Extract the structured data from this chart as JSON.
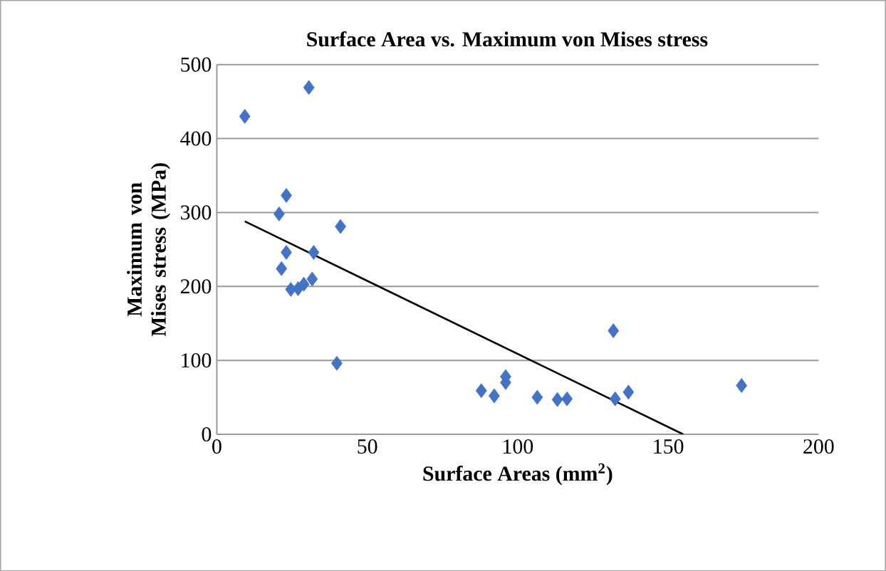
{
  "chart_data": {
    "type": "scatter",
    "title": "Surface Area vs. Maximum von Mises stress",
    "xlabel": "Surface Areas (mm$^{2}$)",
    "ylabel": "Maximum von Mises stress (MPa)",
    "xlim": [
      0,
      200
    ],
    "ylim": [
      0,
      500
    ],
    "xticks": [
      0,
      50,
      100,
      150,
      200
    ],
    "yticks": [
      0,
      100,
      200,
      300,
      400,
      500
    ],
    "grid": "y",
    "marker": "diamond",
    "series": [
      {
        "color": "#4472c4",
        "x": [
          9.3,
          30.6,
          23.1,
          20.7,
          23.1,
          41.1,
          21.5,
          32.2,
          24.6,
          27,
          28.9,
          31.7,
          39.9,
          87.9,
          92.2,
          96,
          96,
          106.5,
          113.2,
          116.4,
          131.8,
          132.4,
          136.8,
          174.4
        ],
        "values": [
          430,
          469,
          323,
          298,
          246,
          281,
          224,
          246,
          196,
          197,
          203,
          210,
          96,
          59,
          52,
          78,
          70,
          50,
          47,
          48,
          140,
          48,
          57,
          66
        ]
      },
      {
        "type": "line",
        "marker": "none",
        "color": "#000000",
        "x": [
          9.3,
          155
        ],
        "values": [
          288,
          0
        ]
      }
    ]
  }
}
